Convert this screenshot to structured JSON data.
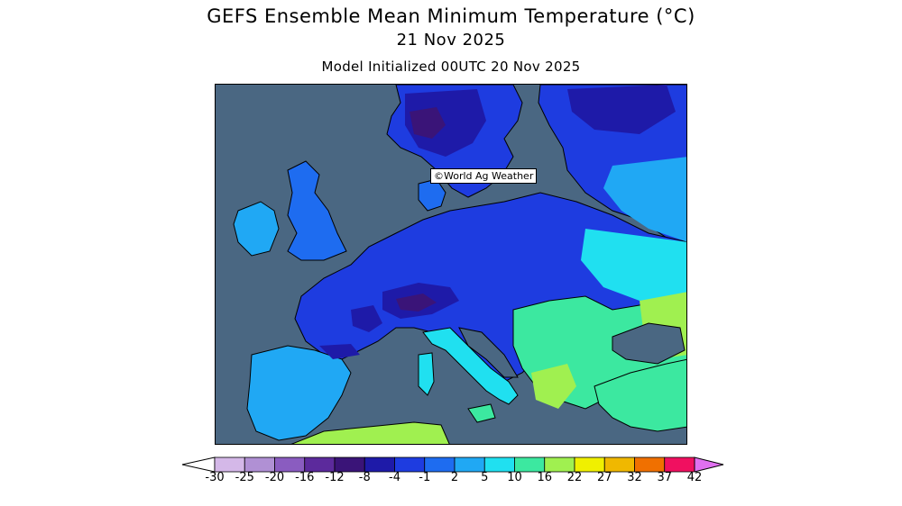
{
  "title": {
    "line1": "GEFS Ensemble Mean Minimum Temperature (°C)",
    "line2": "21 Nov 2025",
    "line3": "Model Initialized 00UTC 20 Nov 2025"
  },
  "credit": "©World Ag Weather",
  "legend": {
    "bins": [
      {
        "label": "-30",
        "color": "#d4b8e8"
      },
      {
        "label": "-25",
        "color": "#b090d4"
      },
      {
        "label": "-20",
        "color": "#8a5cc0"
      },
      {
        "label": "-16",
        "color": "#5c2a9c"
      },
      {
        "label": "-12",
        "color": "#3a1478"
      },
      {
        "label": "-8",
        "color": "#1e1aa8"
      },
      {
        "label": "-4",
        "color": "#1e3ce0"
      },
      {
        "label": "-1",
        "color": "#1e6cf0"
      },
      {
        "label": "2",
        "color": "#20a8f4"
      },
      {
        "label": "5",
        "color": "#20e0f0"
      },
      {
        "label": "10",
        "color": "#3ce8a0"
      },
      {
        "label": "16",
        "color": "#a0f050"
      },
      {
        "label": "22",
        "color": "#f0f000"
      },
      {
        "label": "27",
        "color": "#f0b800"
      },
      {
        "label": "32",
        "color": "#f07000"
      },
      {
        "label": "37",
        "color": "#f01060"
      },
      {
        "label": "42",
        "color": "#f040d0"
      }
    ],
    "under_color": "#ffffff",
    "over_color": "#e070f0"
  },
  "colors": {
    "ocean": "#4a6782",
    "border": "#000000"
  }
}
